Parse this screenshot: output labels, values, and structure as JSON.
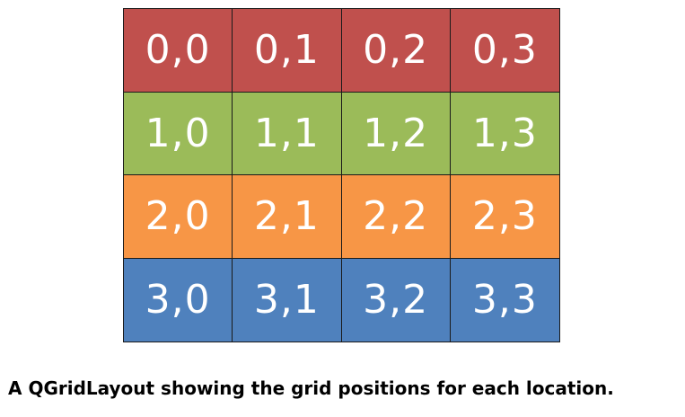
{
  "grid": {
    "rows": [
      {
        "color": "#c0504d",
        "cells": [
          "0,0",
          "0,1",
          "0,2",
          "0,3"
        ]
      },
      {
        "color": "#9bbb59",
        "cells": [
          "1,0",
          "1,1",
          "1,2",
          "1,3"
        ]
      },
      {
        "color": "#f79646",
        "cells": [
          "2,0",
          "2,1",
          "2,2",
          "2,3"
        ]
      },
      {
        "color": "#4f81bd",
        "cells": [
          "3,0",
          "3,1",
          "3,2",
          "3,3"
        ]
      }
    ],
    "border_color": "#1a1a1a",
    "text_color": "#ffffff"
  },
  "caption": "A QGridLayout showing the grid positions for each location."
}
